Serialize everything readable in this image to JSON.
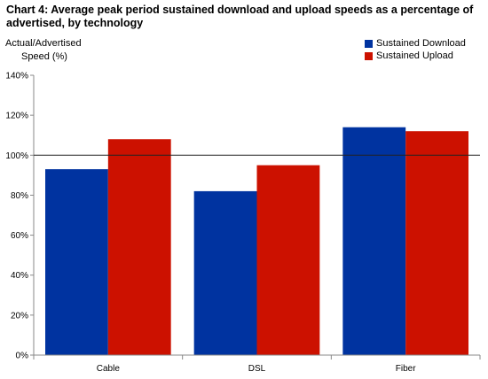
{
  "chart_data": {
    "type": "bar",
    "title": "Chart 4: Average peak period sustained download and upload speeds as a percentage of advertised, by technology",
    "ylabel_line1": "Actual/Advertised",
    "ylabel_line2": "Speed (%)",
    "xlabel": "",
    "categories": [
      "Cable",
      "DSL",
      "Fiber"
    ],
    "series": [
      {
        "name": "Sustained Download",
        "color": "#0033a0",
        "values": [
          93,
          82,
          114
        ]
      },
      {
        "name": "Sustained Upload",
        "color": "#cc1100",
        "values": [
          108,
          95,
          112
        ]
      }
    ],
    "ylim": [
      0,
      140
    ],
    "y_ticks": [
      0,
      20,
      40,
      60,
      80,
      100,
      120,
      140
    ],
    "y_tick_format": "percent",
    "reference_line": 100,
    "legend_position": "top-right",
    "grid": false
  }
}
